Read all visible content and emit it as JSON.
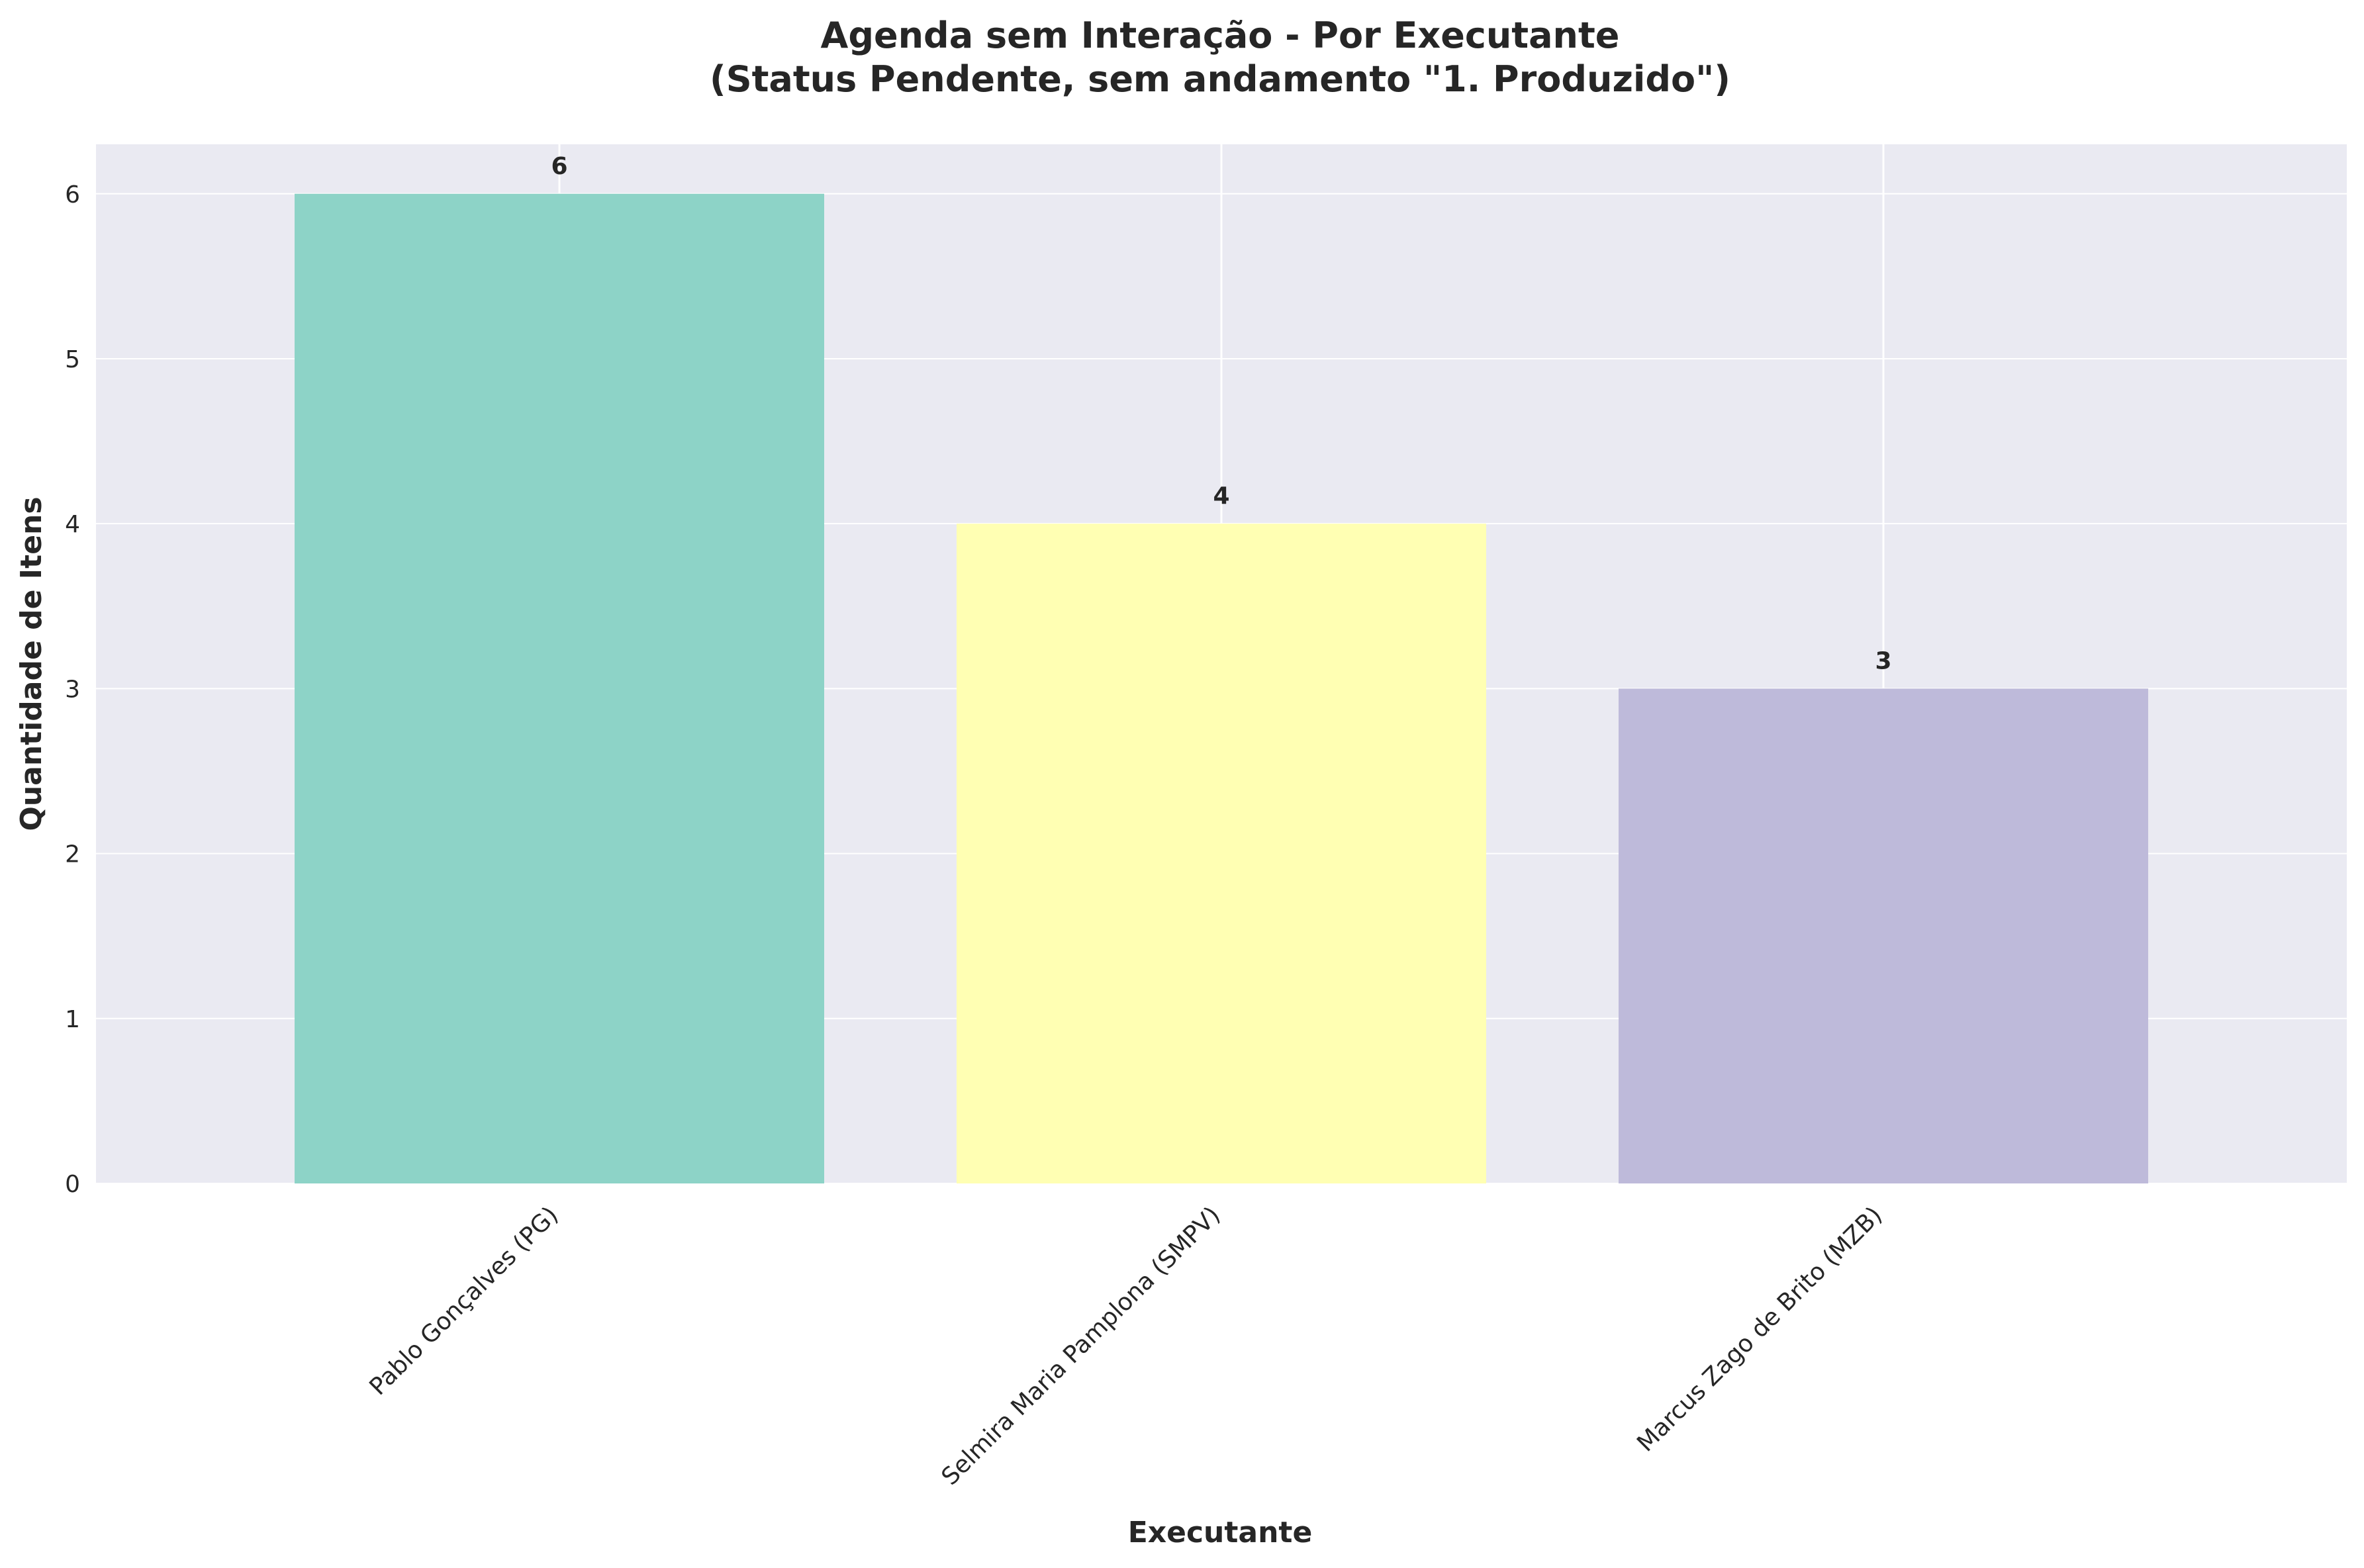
{
  "chart_data": {
    "type": "bar",
    "title_lines": [
      "Agenda sem Interação - Por Executante",
      "(Status Pendente, sem andamento \"1. Produzido\")"
    ],
    "xlabel": "Executante",
    "ylabel": "Quantidade de Itens",
    "categories": [
      "Pablo Gonçalves (PG)",
      "Selmira Maria Pamplona (SMPV)",
      "Marcus Zago de Brito (MZB)"
    ],
    "values": [
      6,
      4,
      3
    ],
    "data_labels": [
      "6",
      "4",
      "3"
    ],
    "yticks": [
      0,
      1,
      2,
      3,
      4,
      5,
      6
    ],
    "ytick_labels": [
      "0",
      "1",
      "2",
      "3",
      "4",
      "5",
      "6"
    ],
    "ylim": [
      0,
      6.3
    ],
    "colors": [
      "#8dd3c7",
      "#ffffb3",
      "#bebada"
    ],
    "grid": true,
    "background_color": "#eaeaf2",
    "legend": "none"
  }
}
